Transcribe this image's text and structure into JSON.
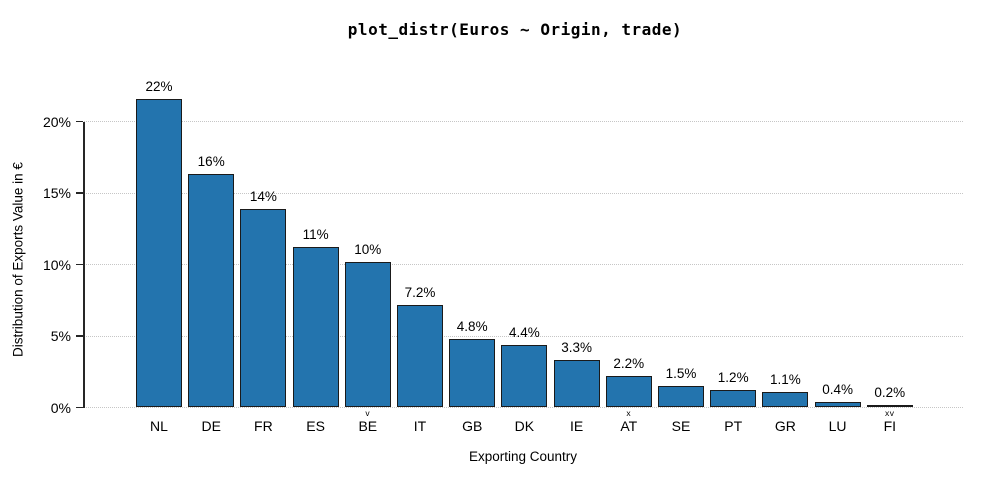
{
  "chart_data": {
    "type": "bar",
    "title": "plot_distr(Euros ~ Origin, trade)",
    "xlabel": "Exporting Country",
    "ylabel": "Distribution of Exports Value in €",
    "categories": [
      "NL",
      "DE",
      "FR",
      "ES",
      "BE",
      "IT",
      "GB",
      "DK",
      "IE",
      "AT",
      "SE",
      "PT",
      "GR",
      "LU",
      "FI"
    ],
    "values": [
      21.6,
      16.3,
      13.9,
      11.2,
      10.2,
      7.2,
      4.8,
      4.4,
      3.3,
      2.2,
      1.5,
      1.2,
      1.1,
      0.4,
      0.2
    ],
    "bar_labels": [
      "22%",
      "16%",
      "14%",
      "11%",
      "10%",
      "7.2%",
      "4.8%",
      "4.4%",
      "3.3%",
      "2.2%",
      "1.5%",
      "1.2%",
      "1.1%",
      "0.4%",
      "0.2%"
    ],
    "category_markers": [
      "",
      "",
      "",
      "",
      "v",
      "",
      "",
      "",
      "",
      "x",
      "",
      "",
      "",
      "",
      "xv"
    ],
    "y_tick_labels": [
      "0%",
      "5%",
      "10%",
      "15%",
      "20%"
    ],
    "y_tick_values": [
      0,
      5,
      10,
      15,
      20
    ],
    "ylim": [
      0,
      22.5
    ],
    "grid": "horizontal dotted",
    "legend": "none",
    "colors": {
      "bar_fill": "#2374ae",
      "bar_edge": "#1a1a1a",
      "grid_line": "#c6c6c6",
      "axis": "#262626",
      "text": "#000000",
      "background": "#ffffff"
    }
  }
}
